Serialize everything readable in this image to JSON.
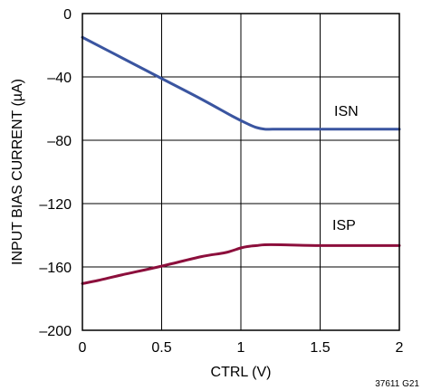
{
  "chart_data": {
    "type": "line",
    "title": "",
    "xlabel": "CTRL (V)",
    "ylabel": "INPUT BIAS CURRENT (µA)",
    "xlim": [
      0,
      2
    ],
    "ylim": [
      -200,
      0
    ],
    "x_ticks": [
      0,
      0.5,
      1,
      1.5,
      2
    ],
    "x_tick_labels": [
      "0",
      "0.5",
      "1",
      "1.5",
      "2"
    ],
    "y_ticks": [
      0,
      -40,
      -80,
      -120,
      -160,
      -200
    ],
    "y_tick_labels": [
      "0",
      "–40",
      "–80",
      "–120",
      "–160",
      "–200"
    ],
    "grid": true,
    "legend": "none",
    "series": [
      {
        "name": "ISN",
        "color": "#3a55a0",
        "x": [
          0,
          0.25,
          0.5,
          0.75,
          0.95,
          1.05,
          1.1,
          1.15,
          1.2,
          1.3,
          1.5,
          1.75,
          2
        ],
        "y": [
          -15,
          -28,
          -41,
          -54,
          -65,
          -70,
          -72,
          -73,
          -73,
          -73,
          -73,
          -73,
          -73
        ]
      },
      {
        "name": "ISP",
        "color": "#8c0f3c",
        "x": [
          0,
          0.1,
          0.25,
          0.5,
          0.75,
          0.9,
          1.0,
          1.05,
          1.1,
          1.15,
          1.25,
          1.5,
          1.75,
          2
        ],
        "y": [
          -170.5,
          -168.5,
          -165,
          -159.5,
          -153.5,
          -151,
          -148,
          -147,
          -146.5,
          -146,
          -146,
          -146.5,
          -146.5,
          -146.5
        ]
      }
    ],
    "annotations": [
      "ISN",
      "ISP"
    ],
    "figure_id": "37611 G21"
  }
}
